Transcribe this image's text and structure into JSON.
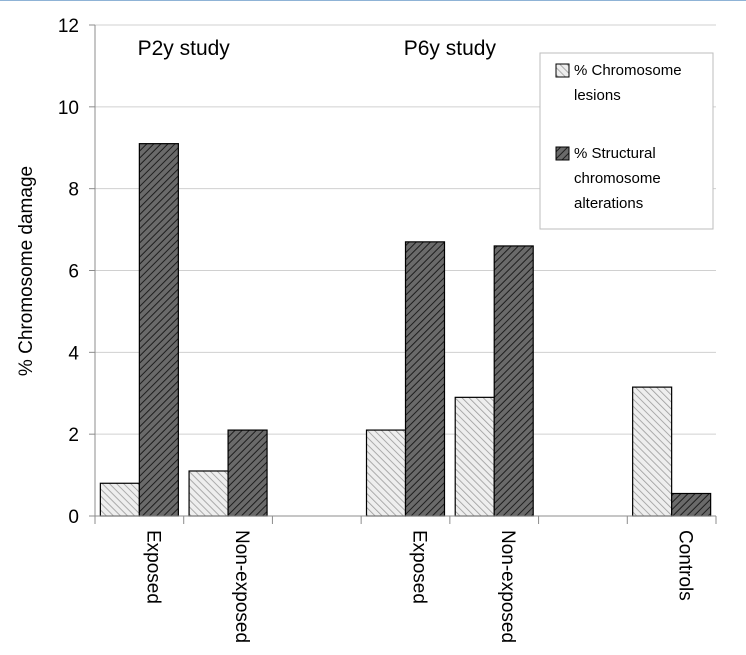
{
  "chart_data": {
    "type": "bar",
    "ylabel": "% Chromosome damage",
    "ylim": [
      0,
      12
    ],
    "yticks": [
      0,
      2,
      4,
      6,
      8,
      10,
      12
    ],
    "grid": "horizontal",
    "slots": [
      "Exposed",
      "Non-exposed",
      "",
      "Exposed",
      "Non-exposed",
      "",
      "Controls"
    ],
    "categories": [
      "Exposed",
      "Non-exposed",
      "Exposed",
      "Non-exposed",
      "Controls"
    ],
    "series": [
      {
        "name": "% Chromosome lesions",
        "name_lines": [
          "% Chromosome",
          "lesions"
        ],
        "pattern": "light-hatch",
        "color": "#d9d9d9",
        "values": [
          0.8,
          1.1,
          2.1,
          2.9,
          3.15
        ]
      },
      {
        "name": "% Structural chromosome alterations",
        "name_lines": [
          "% Structural",
          "chromosome",
          "alterations"
        ],
        "pattern": "dark-hatch",
        "color": "#595959",
        "values": [
          9.1,
          2.1,
          6.7,
          6.6,
          0.55
        ]
      }
    ],
    "annotations": [
      {
        "text": "P2y study",
        "slot_center": 0.5
      },
      {
        "text": "P6y study",
        "slot_center": 3.5
      }
    ],
    "legend_position": "top-right"
  }
}
